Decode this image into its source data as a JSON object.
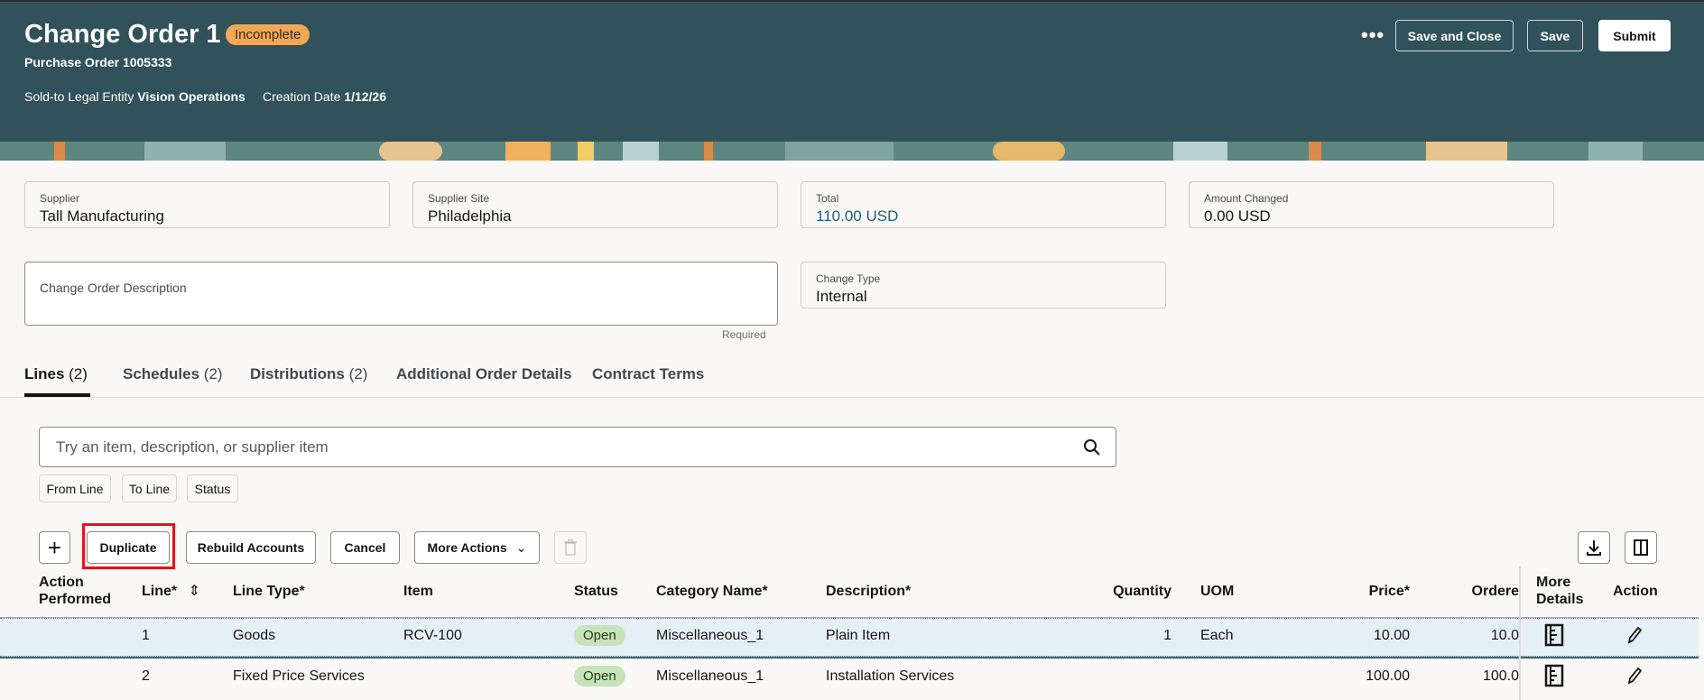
{
  "header": {
    "title": "Change Order 1",
    "status_badge": "Incomplete",
    "subtitle": "Purchase Order 1005333",
    "legal_entity_label": "Sold-to Legal Entity",
    "legal_entity_value": "Vision Operations",
    "creation_date_label": "Creation Date",
    "creation_date_value": "1/12/26",
    "more_icon": "ellipsis-icon",
    "buttons": {
      "save_and_close": "Save and Close",
      "save": "Save",
      "submit": "Submit"
    }
  },
  "colors": {
    "header_bg": "#31525a",
    "badge": "#f0a857",
    "open_pill": "#c7e3b8",
    "selected_row": "#e4f0f6",
    "highlight_box": "#e2141b",
    "total_value": "#1f5d80"
  },
  "fields": {
    "supplier": {
      "label": "Supplier",
      "value": "Tall Manufacturing"
    },
    "supplier_site": {
      "label": "Supplier Site",
      "value": "Philadelphia"
    },
    "total": {
      "label": "Total",
      "value": "110.00 USD"
    },
    "amount_changed": {
      "label": "Amount Changed",
      "value": "0.00 USD"
    },
    "description": {
      "label": "Change Order Description",
      "value": "",
      "helper": "Required"
    },
    "change_type": {
      "label": "Change Type",
      "value": "Internal"
    }
  },
  "tabs": [
    {
      "label": "Lines",
      "count": "(2)"
    },
    {
      "label": "Schedules",
      "count": "(2)"
    },
    {
      "label": "Distributions",
      "count": "(2)"
    },
    {
      "label": "Additional Order Details",
      "count": ""
    },
    {
      "label": "Contract Terms",
      "count": ""
    }
  ],
  "search": {
    "placeholder": "Try an item, description, or supplier item",
    "filters": [
      "From Line",
      "To Line",
      "Status"
    ]
  },
  "toolbar": {
    "add_icon": "plus-icon",
    "duplicate": "Duplicate",
    "rebuild": "Rebuild Accounts",
    "cancel": "Cancel",
    "more_actions": "More Actions",
    "delete_icon": "trash-icon",
    "download_icon": "download-icon",
    "columns_icon": "columns-icon"
  },
  "table": {
    "headers": {
      "action_performed_1": "Action",
      "action_performed_2": "Performed",
      "line": "Line*",
      "line_type": "Line Type*",
      "item": "Item",
      "status": "Status",
      "category": "Category Name*",
      "description": "Description*",
      "quantity": "Quantity",
      "uom": "UOM",
      "price": "Price*",
      "ordered": "Ordere",
      "more_details_1": "More",
      "more_details_2": "Details",
      "action": "Action"
    },
    "rows": [
      {
        "line": "1",
        "line_type": "Goods",
        "item": "RCV-100",
        "status": "Open",
        "category": "Miscellaneous_1",
        "description": "Plain Item",
        "quantity": "1",
        "uom": "Each",
        "price": "10.00",
        "ordered": "10.0"
      },
      {
        "line": "2",
        "line_type": "Fixed Price Services",
        "item": "",
        "status": "Open",
        "category": "Miscellaneous_1",
        "description": "Installation Services",
        "quantity": "",
        "uom": "",
        "price": "100.00",
        "ordered": "100.0"
      }
    ]
  }
}
